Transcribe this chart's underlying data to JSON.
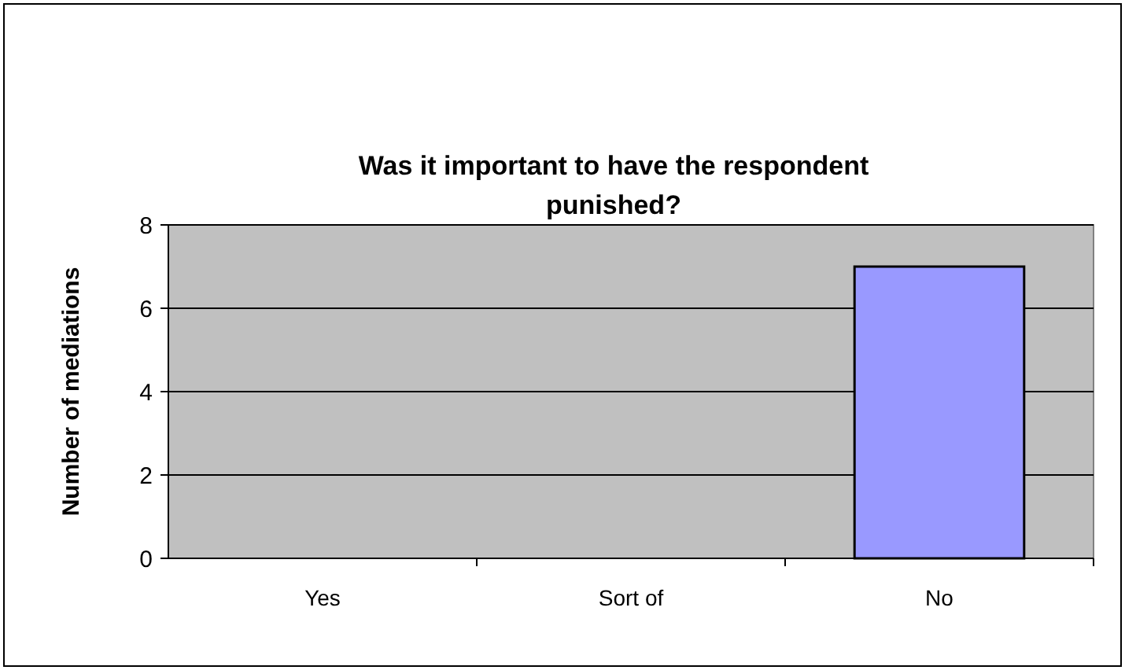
{
  "chart_data": {
    "type": "bar",
    "title": "Was it important to have the respondent punished?",
    "ylabel": "Number of mediations",
    "categories": [
      "Yes",
      "Sort of",
      "No"
    ],
    "values": [
      0,
      0,
      7
    ],
    "color": "#9999ff",
    "ylim": [
      0,
      8
    ],
    "yticks": [
      0,
      2,
      4,
      6,
      8
    ],
    "grid": "y"
  }
}
